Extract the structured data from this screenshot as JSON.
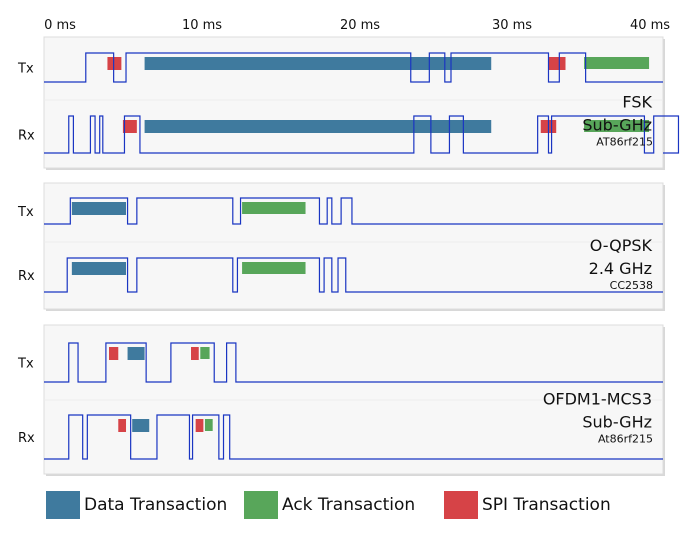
{
  "axis": {
    "ticks": [
      "0 ms",
      "10 ms",
      "20 ms",
      "30 ms",
      "40 ms"
    ]
  },
  "colors": {
    "data": "#3f7a9e",
    "ack": "#58a65a",
    "spi": "#d64347",
    "signal": "#1a35c2",
    "panel": "#f7f7f7"
  },
  "legend": [
    {
      "label": "Data Transaction",
      "type": "data"
    },
    {
      "label": "Ack Transaction",
      "type": "ack"
    },
    {
      "label": "SPI Transaction",
      "type": "spi"
    }
  ],
  "panels": [
    {
      "modulation": "FSK",
      "band": "Sub-GHz",
      "chip": "AT86rf215",
      "rows": [
        {
          "label": "Tx",
          "signal": [
            [
              0,
              0
            ],
            [
              2.7,
              1
            ],
            [
              4.5,
              0
            ],
            [
              5.3,
              1
            ],
            [
              23.7,
              0
            ],
            [
              24.9,
              1
            ],
            [
              25.9,
              0
            ],
            [
              26.3,
              1
            ],
            [
              32.6,
              0
            ],
            [
              33.3,
              1
            ],
            [
              35,
              0
            ]
          ],
          "blocks": [
            {
              "type": "spi",
              "start": 4.1,
              "end": 5.0
            },
            {
              "type": "data",
              "start": 6.5,
              "end": 28.9
            },
            {
              "type": "spi",
              "start": 32.6,
              "end": 33.7
            },
            {
              "type": "ack",
              "start": 34.9,
              "end": 39.1
            }
          ]
        },
        {
          "label": "Rx",
          "signal": [
            [
              0,
              0
            ],
            [
              1.6,
              1
            ],
            [
              1.9,
              0
            ],
            [
              3,
              1
            ],
            [
              3.3,
              0
            ],
            [
              3.6,
              1
            ],
            [
              3.8,
              0
            ],
            [
              5.2,
              1
            ],
            [
              6.2,
              0
            ],
            [
              23.9,
              1
            ],
            [
              25,
              0
            ],
            [
              26.2,
              1
            ],
            [
              27.1,
              0
            ],
            [
              31.9,
              1
            ],
            [
              32.6,
              0
            ],
            [
              32.8,
              1
            ],
            [
              38.8,
              0
            ],
            [
              39.4,
              1
            ],
            [
              41,
              0
            ]
          ],
          "blocks": [
            {
              "type": "spi",
              "start": 5.1,
              "end": 6.0
            },
            {
              "type": "data",
              "start": 6.5,
              "end": 28.9
            },
            {
              "type": "spi",
              "start": 32.1,
              "end": 33.1
            },
            {
              "type": "ack",
              "start": 34.9,
              "end": 39.1
            }
          ]
        }
      ]
    },
    {
      "modulation": "O-QPSK",
      "band": "2.4 GHz",
      "chip": "CC2538",
      "rows": [
        {
          "label": "Tx",
          "signal": [
            [
              0,
              0
            ],
            [
              1.7,
              1
            ],
            [
              5.4,
              0
            ],
            [
              6.0,
              1
            ],
            [
              12.2,
              0
            ],
            [
              12.7,
              1
            ],
            [
              17.8,
              0
            ],
            [
              18.3,
              1
            ],
            [
              18.6,
              0
            ],
            [
              19.2,
              1
            ],
            [
              19.9,
              0
            ]
          ],
          "blocks": [
            {
              "type": "data",
              "start": 1.8,
              "end": 5.3
            },
            {
              "type": "ack",
              "start": 12.8,
              "end": 16.9
            }
          ]
        },
        {
          "label": "Rx",
          "signal": [
            [
              0,
              0
            ],
            [
              1.5,
              1
            ],
            [
              5.4,
              0
            ],
            [
              6.0,
              1
            ],
            [
              12.2,
              0
            ],
            [
              12.5,
              1
            ],
            [
              17.8,
              0
            ],
            [
              18.1,
              1
            ],
            [
              18.6,
              0
            ],
            [
              19.0,
              1
            ],
            [
              19.5,
              0
            ]
          ],
          "blocks": [
            {
              "type": "data",
              "start": 1.8,
              "end": 5.3
            },
            {
              "type": "ack",
              "start": 12.8,
              "end": 16.9
            }
          ]
        }
      ]
    },
    {
      "modulation": "OFDM1-MCS3",
      "band": "Sub-GHz",
      "chip": "At86rf215",
      "rows": [
        {
          "label": "Tx",
          "signal": [
            [
              0,
              0
            ],
            [
              1.6,
              1
            ],
            [
              2.2,
              0
            ],
            [
              4.0,
              1
            ],
            [
              6.6,
              0
            ],
            [
              8.2,
              1
            ],
            [
              11.0,
              0
            ],
            [
              11.8,
              1
            ],
            [
              12.4,
              0
            ]
          ],
          "blocks": [
            {
              "type": "spi",
              "start": 4.2,
              "end": 4.8
            },
            {
              "type": "data",
              "start": 5.4,
              "end": 6.5
            },
            {
              "type": "spi",
              "start": 9.5,
              "end": 10.0
            },
            {
              "type": "ack",
              "start": 10.1,
              "end": 10.7
            }
          ]
        },
        {
          "label": "Rx",
          "signal": [
            [
              0,
              0
            ],
            [
              1.6,
              1
            ],
            [
              2.5,
              0
            ],
            [
              2.8,
              1
            ],
            [
              5.6,
              0
            ],
            [
              7.3,
              1
            ],
            [
              9.4,
              0
            ],
            [
              9.6,
              1
            ],
            [
              11.3,
              0
            ],
            [
              11.6,
              1
            ],
            [
              12.0,
              0
            ]
          ],
          "blocks": [
            {
              "type": "spi",
              "start": 4.8,
              "end": 5.3
            },
            {
              "type": "data",
              "start": 5.7,
              "end": 6.8
            },
            {
              "type": "spi",
              "start": 9.8,
              "end": 10.3
            },
            {
              "type": "ack",
              "start": 10.4,
              "end": 10.9
            }
          ]
        }
      ]
    }
  ]
}
